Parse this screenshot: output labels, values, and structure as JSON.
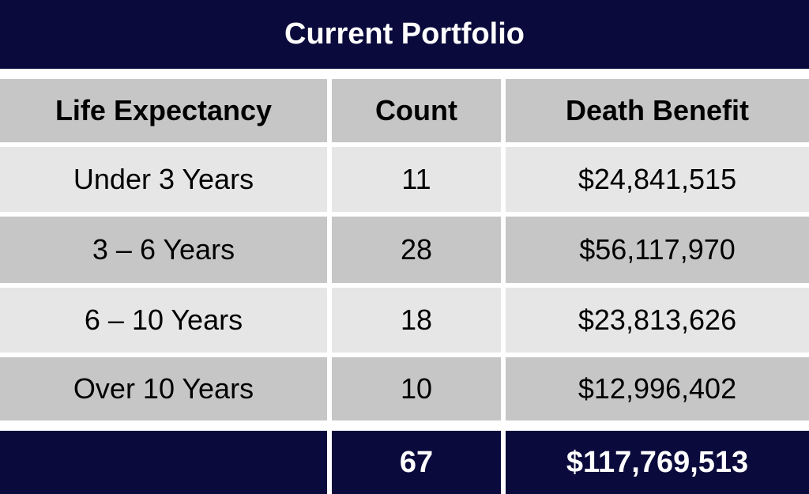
{
  "title": "Current Portfolio",
  "columns": [
    "Life Expectancy",
    "Count",
    "Death Benefit"
  ],
  "rows": [
    {
      "life_expectancy": "Under 3 Years",
      "count": "11",
      "death_benefit": "$24,841,515"
    },
    {
      "life_expectancy": "3 – 6 Years",
      "count": "28",
      "death_benefit": "$56,117,970"
    },
    {
      "life_expectancy": "6 – 10 Years",
      "count": "18",
      "death_benefit": "$23,813,626"
    },
    {
      "life_expectancy": "Over 10 Years",
      "count": "10",
      "death_benefit": "$12,996,402"
    }
  ],
  "total": {
    "label": "",
    "count": "67",
    "death_benefit": "$117,769,513"
  },
  "colors": {
    "navy": "#0a0a3c",
    "header_gray": "#c6c6c6",
    "light_gray": "#e6e6e6",
    "dark_gray": "#c6c6c6"
  }
}
